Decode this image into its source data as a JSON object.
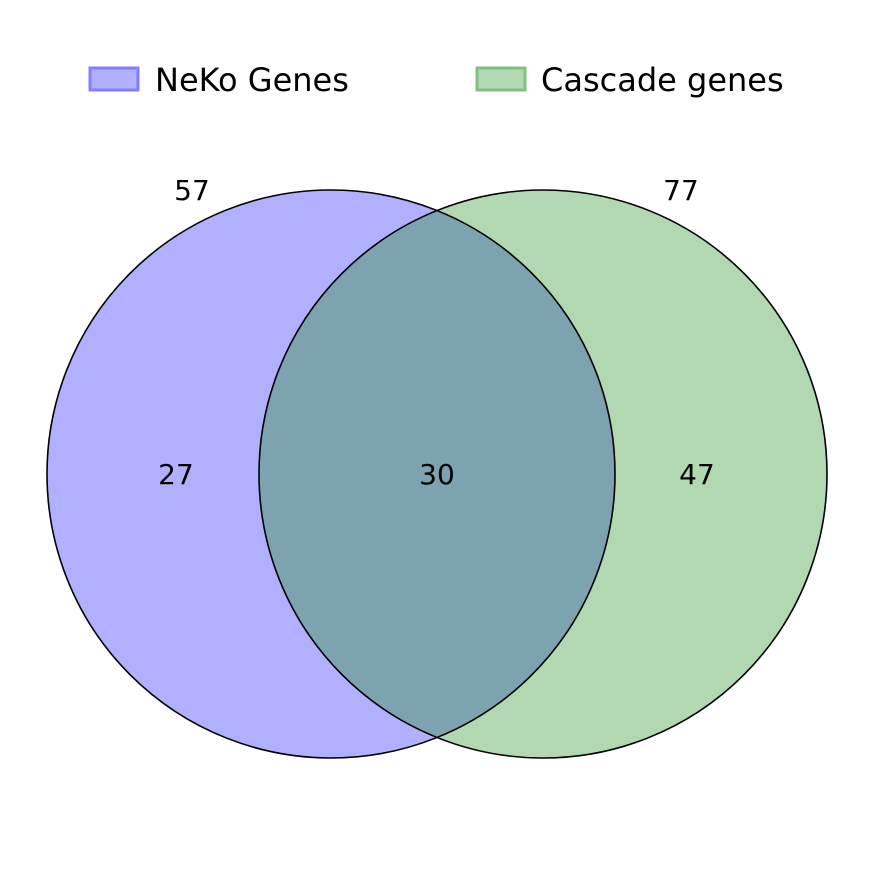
{
  "legend": {
    "set_a": {
      "label": "NeKo Genes",
      "color": "#0000ff",
      "swatch_fill": "#b0b0ff"
    },
    "set_b": {
      "label": "Cascade genes",
      "color": "#008000",
      "swatch_fill": "#b2d8b2"
    }
  },
  "venn": {
    "set_a_total": "57",
    "set_b_total": "77",
    "only_a": "27",
    "overlap": "30",
    "only_b": "47",
    "colors": {
      "set_a_fill": "#b0b0ff",
      "set_b_fill": "#b2d8b2",
      "overlap_fill": "#7da2b0",
      "outline": "#000000"
    }
  }
}
